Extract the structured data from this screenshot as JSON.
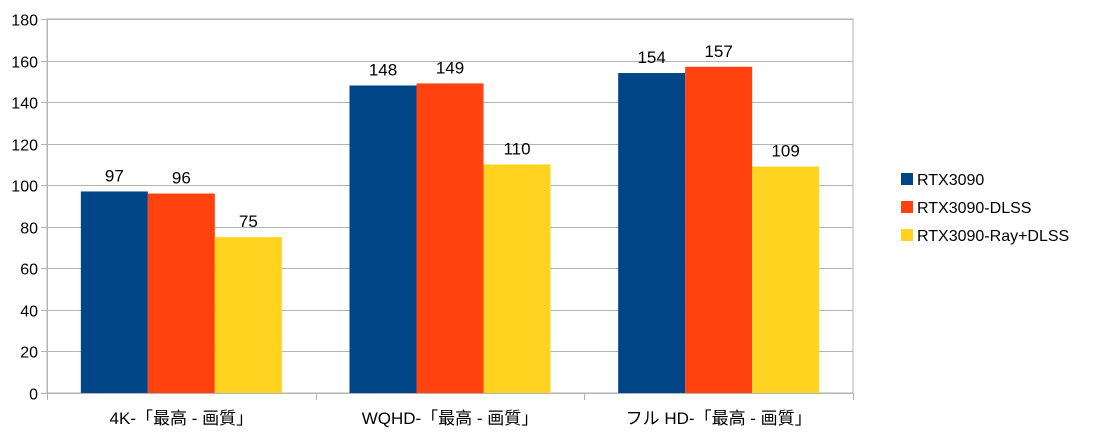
{
  "chart_data": {
    "type": "bar",
    "title": "",
    "xlabel": "",
    "ylabel": "",
    "categories": [
      "4K-「最高 - 画質」",
      "WQHD-「最高 - 画質」",
      "フル HD-「最高 - 画質」"
    ],
    "series": [
      {
        "name": "RTX3090",
        "values": [
          97,
          148,
          154
        ],
        "color": "#004586"
      },
      {
        "name": "RTX3090-DLSS",
        "values": [
          96,
          149,
          157
        ],
        "color": "#ff420e"
      },
      {
        "name": "RTX3090-Ray+DLSS",
        "values": [
          75,
          110,
          109
        ],
        "color": "#ffd320"
      }
    ],
    "ylim": [
      0,
      180
    ],
    "yticks": [
      0,
      20,
      40,
      60,
      80,
      100,
      120,
      140,
      160,
      180
    ],
    "grid": true,
    "legend_position": "right",
    "data_labels": true
  }
}
